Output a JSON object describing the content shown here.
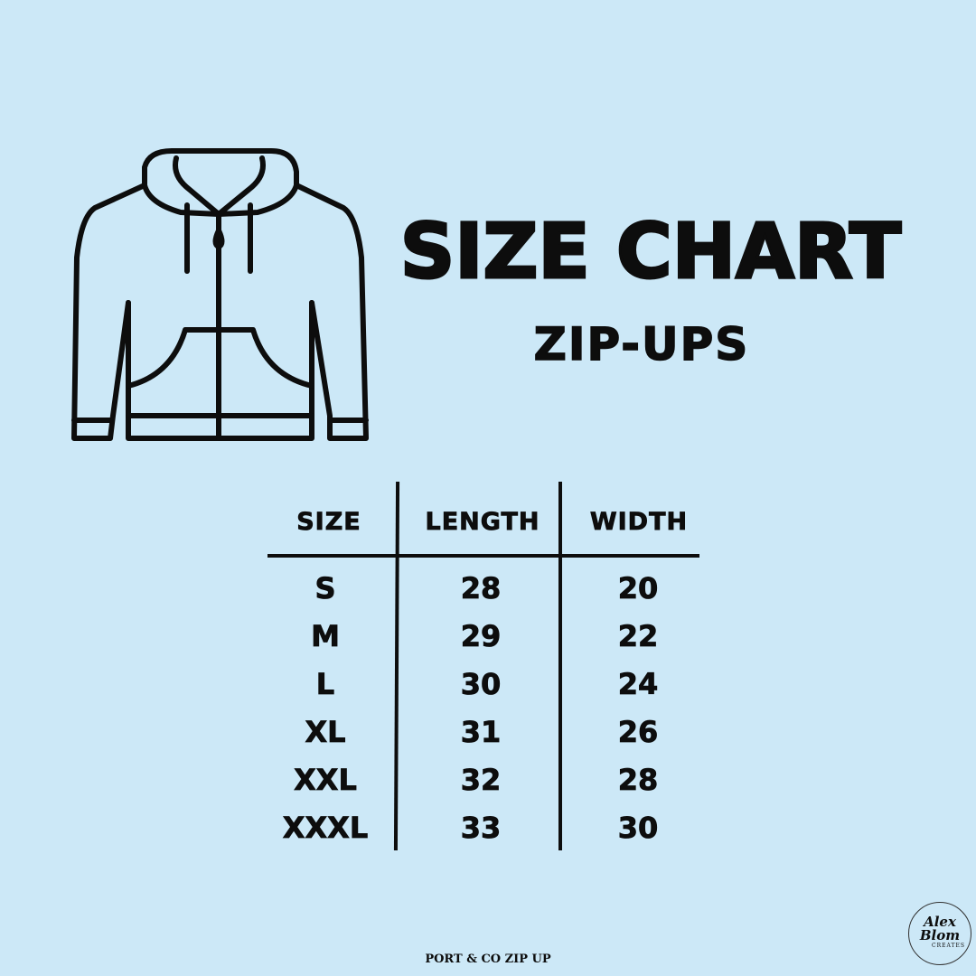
{
  "title": "SIZE CHART",
  "subtitle": "ZIP-UPS",
  "table": {
    "headers": [
      "SIZE",
      "LENGTH",
      "WIDTH"
    ],
    "rows": [
      [
        "S",
        "28",
        "20"
      ],
      [
        "M",
        "29",
        "22"
      ],
      [
        "L",
        "30",
        "24"
      ],
      [
        "XL",
        "31",
        "26"
      ],
      [
        "XXL",
        "32",
        "28"
      ],
      [
        "XXXL",
        "33",
        "30"
      ]
    ]
  },
  "footer": "PORT & CO ZIP UP",
  "logo": {
    "line1": "Alex",
    "line2": "Blom",
    "line3": "CREATES"
  },
  "colors": {
    "background": "#cce8f7",
    "ink": "#0d0d0d"
  },
  "icon": "zip-hoodie-icon"
}
